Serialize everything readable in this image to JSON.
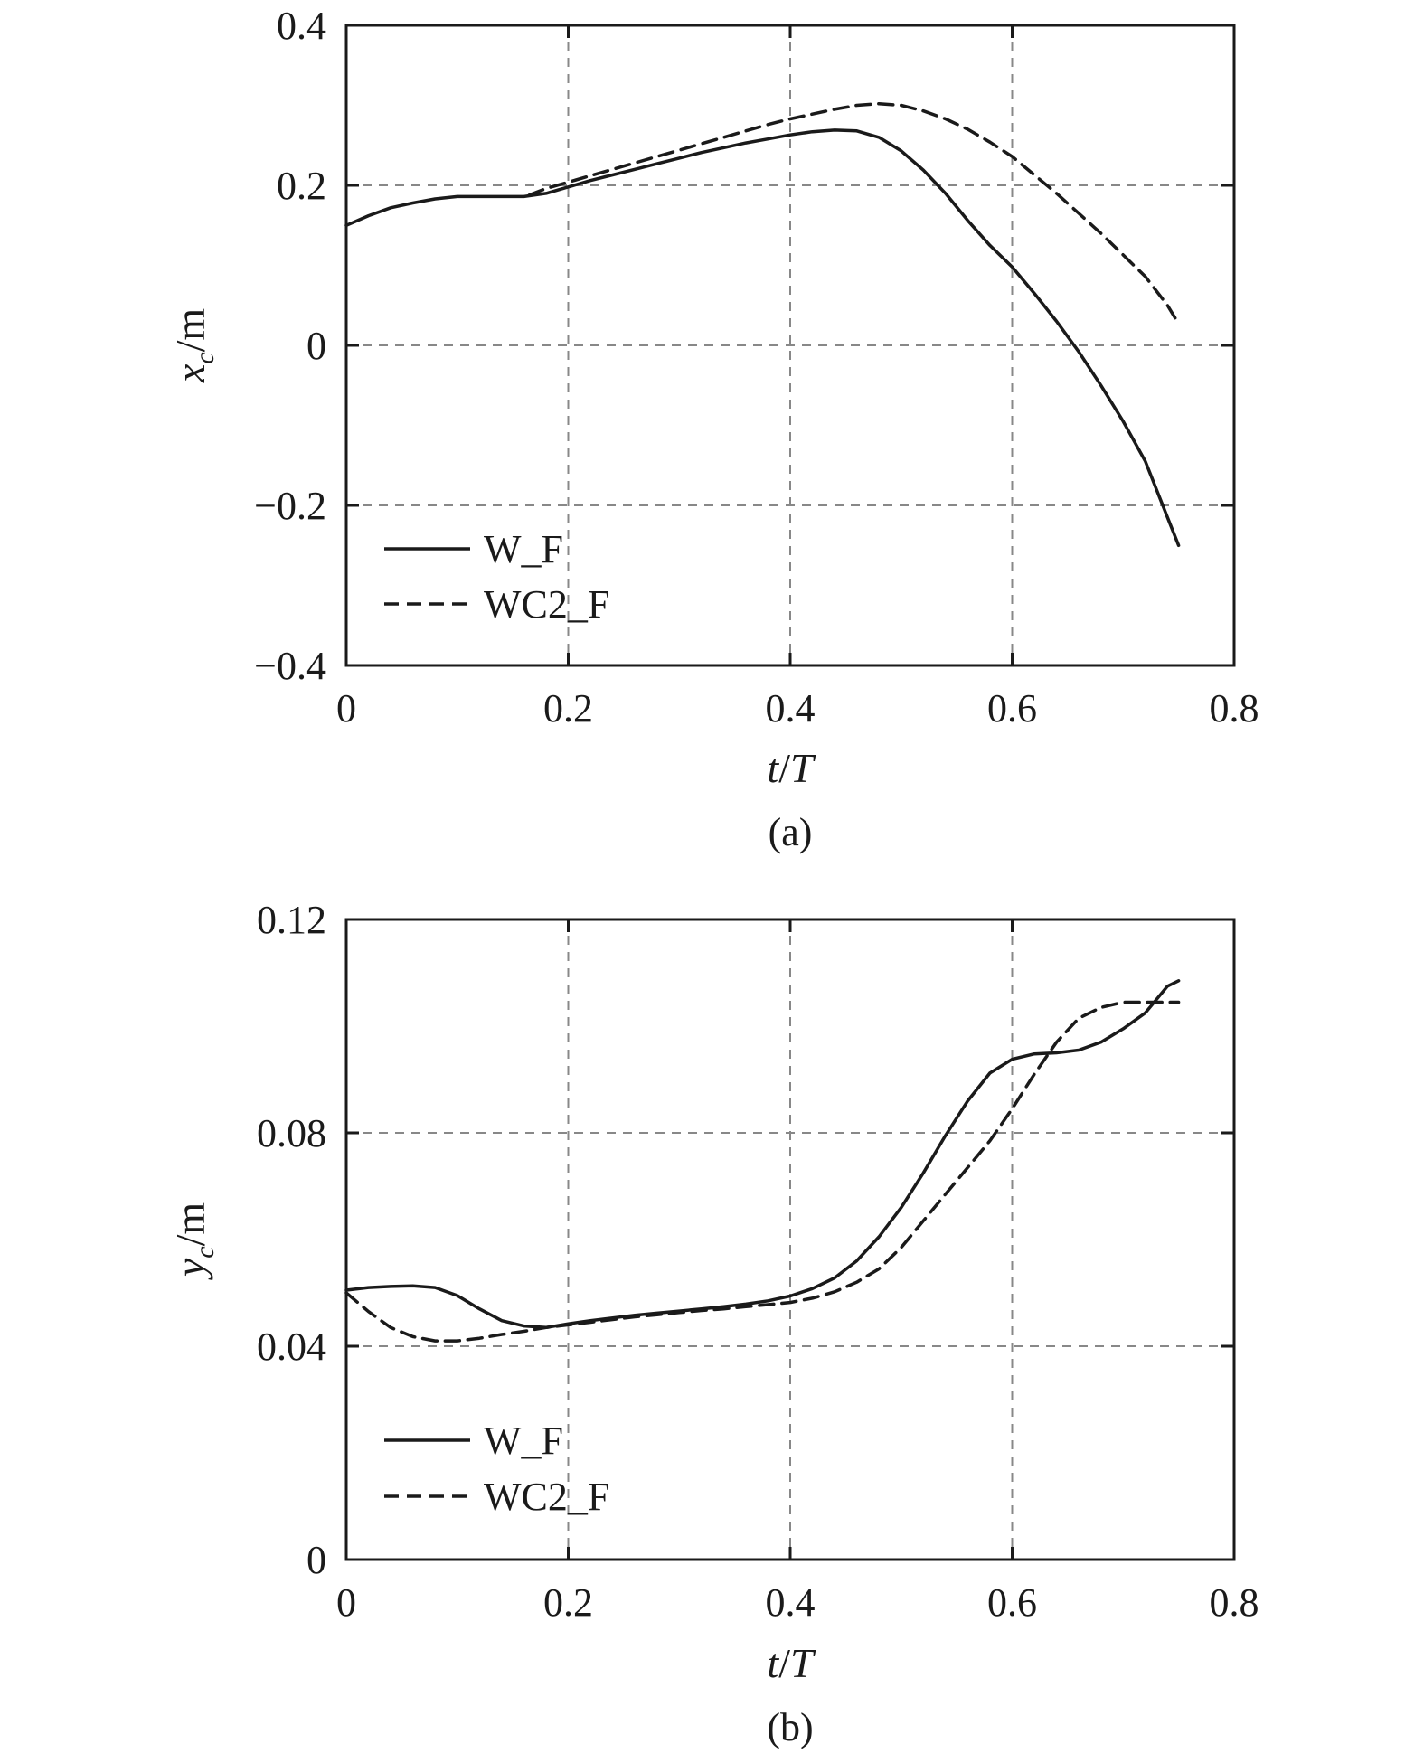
{
  "chart_data": [
    {
      "type": "line",
      "caption": "(a)",
      "xlabel": {
        "var": "t",
        "sep": "/",
        "unit": "T"
      },
      "ylabel": {
        "var": "x",
        "sub": "c",
        "unit": "/m"
      },
      "xlim": [
        0,
        0.8
      ],
      "ylim": [
        -0.4,
        0.4
      ],
      "xticks": [
        0,
        0.2,
        0.4,
        0.6,
        0.8
      ],
      "xtick_labels": [
        "0",
        "0.2",
        "0.4",
        "0.6",
        "0.8"
      ],
      "yticks": [
        -0.4,
        -0.2,
        0,
        0.2,
        0.4
      ],
      "ytick_labels": [
        "−0.4",
        "−0.2",
        "0",
        "0.2",
        "0.4"
      ],
      "grid": true,
      "legend_position": "bottom-left",
      "series": [
        {
          "name": "W_F",
          "style": "solid",
          "x": [
            0,
            0.02,
            0.04,
            0.06,
            0.08,
            0.1,
            0.12,
            0.14,
            0.16,
            0.18,
            0.2,
            0.22,
            0.24,
            0.26,
            0.28,
            0.3,
            0.32,
            0.34,
            0.36,
            0.38,
            0.4,
            0.42,
            0.44,
            0.46,
            0.48,
            0.5,
            0.52,
            0.54,
            0.56,
            0.58,
            0.6,
            0.62,
            0.64,
            0.66,
            0.68,
            0.7,
            0.72,
            0.74,
            0.75
          ],
          "y": [
            0.15,
            0.162,
            0.172,
            0.178,
            0.183,
            0.186,
            0.186,
            0.186,
            0.186,
            0.19,
            0.198,
            0.206,
            0.213,
            0.22,
            0.227,
            0.234,
            0.241,
            0.247,
            0.253,
            0.258,
            0.263,
            0.267,
            0.269,
            0.268,
            0.26,
            0.243,
            0.219,
            0.19,
            0.156,
            0.125,
            0.098,
            0.065,
            0.03,
            -0.008,
            -0.05,
            -0.095,
            -0.145,
            -0.215,
            -0.25
          ]
        },
        {
          "name": "WC2_F",
          "style": "dashed",
          "x": [
            0.165,
            0.18,
            0.2,
            0.22,
            0.24,
            0.26,
            0.28,
            0.3,
            0.32,
            0.34,
            0.36,
            0.38,
            0.4,
            0.42,
            0.44,
            0.46,
            0.48,
            0.5,
            0.52,
            0.54,
            0.56,
            0.58,
            0.6,
            0.62,
            0.64,
            0.66,
            0.68,
            0.7,
            0.72,
            0.74,
            0.75
          ],
          "y": [
            0.188,
            0.196,
            0.204,
            0.212,
            0.22,
            0.228,
            0.236,
            0.244,
            0.252,
            0.26,
            0.268,
            0.276,
            0.283,
            0.289,
            0.295,
            0.3,
            0.302,
            0.3,
            0.293,
            0.283,
            0.27,
            0.254,
            0.236,
            0.213,
            0.19,
            0.165,
            0.14,
            0.113,
            0.086,
            0.05,
            0.027
          ]
        }
      ]
    },
    {
      "type": "line",
      "caption": "(b)",
      "xlabel": {
        "var": "t",
        "sep": "/",
        "unit": "T"
      },
      "ylabel": {
        "var": "y",
        "sub": "c",
        "unit": "/m"
      },
      "xlim": [
        0,
        0.8
      ],
      "ylim": [
        0,
        0.12
      ],
      "xticks": [
        0,
        0.2,
        0.4,
        0.6,
        0.8
      ],
      "xtick_labels": [
        "0",
        "0.2",
        "0.4",
        "0.6",
        "0.8"
      ],
      "yticks": [
        0,
        0.04,
        0.08,
        0.12
      ],
      "ytick_labels": [
        "0",
        "0.04",
        "0.08",
        "0.12"
      ],
      "grid": true,
      "legend_position": "bottom-left",
      "series": [
        {
          "name": "W_F",
          "style": "solid",
          "x": [
            0,
            0.02,
            0.04,
            0.06,
            0.08,
            0.1,
            0.12,
            0.14,
            0.16,
            0.18,
            0.2,
            0.22,
            0.24,
            0.26,
            0.28,
            0.3,
            0.32,
            0.34,
            0.36,
            0.38,
            0.4,
            0.42,
            0.44,
            0.46,
            0.48,
            0.5,
            0.52,
            0.54,
            0.56,
            0.58,
            0.6,
            0.62,
            0.64,
            0.66,
            0.68,
            0.7,
            0.72,
            0.74,
            0.75
          ],
          "y": [
            0.0505,
            0.051,
            0.0512,
            0.0513,
            0.051,
            0.0495,
            0.047,
            0.0448,
            0.0438,
            0.0435,
            0.0442,
            0.0448,
            0.0453,
            0.0458,
            0.0462,
            0.0466,
            0.047,
            0.0474,
            0.0479,
            0.0485,
            0.0494,
            0.0508,
            0.0528,
            0.056,
            0.0605,
            0.066,
            0.0725,
            0.0795,
            0.086,
            0.0912,
            0.0938,
            0.0948,
            0.095,
            0.0955,
            0.097,
            0.0995,
            0.1025,
            0.1075,
            0.1085
          ]
        },
        {
          "name": "WC2_F",
          "style": "dashed",
          "x": [
            0,
            0.02,
            0.04,
            0.06,
            0.08,
            0.1,
            0.12,
            0.14,
            0.16,
            0.18,
            0.2,
            0.22,
            0.24,
            0.26,
            0.28,
            0.3,
            0.32,
            0.34,
            0.36,
            0.38,
            0.4,
            0.42,
            0.44,
            0.46,
            0.48,
            0.5,
            0.52,
            0.54,
            0.56,
            0.58,
            0.6,
            0.62,
            0.64,
            0.66,
            0.68,
            0.7,
            0.72,
            0.74,
            0.75
          ],
          "y": [
            0.05,
            0.0465,
            0.0435,
            0.0418,
            0.041,
            0.041,
            0.0415,
            0.0422,
            0.0428,
            0.0435,
            0.044,
            0.0445,
            0.045,
            0.0455,
            0.0459,
            0.0463,
            0.0467,
            0.047,
            0.0474,
            0.0478,
            0.0482,
            0.049,
            0.0502,
            0.052,
            0.0545,
            0.0585,
            0.0635,
            0.0685,
            0.0735,
            0.0785,
            0.0845,
            0.091,
            0.097,
            0.1015,
            0.1035,
            0.1045,
            0.1045,
            0.1045,
            0.1045
          ]
        }
      ]
    }
  ]
}
